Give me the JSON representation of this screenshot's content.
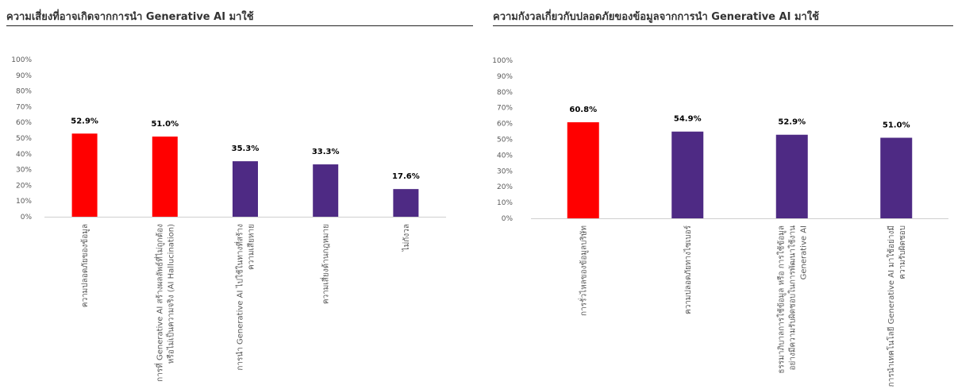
{
  "colors": {
    "highlight": "#ff0000",
    "bar": "#4e2a84",
    "axis": "#d0d0d0",
    "tick": "#595959",
    "title": "#333333"
  },
  "charts": [
    {
      "title": "ความเสี่ยงที่อาจเกิดจากการนำ  Generative AI มาใช้",
      "y_ticks": [
        "0%",
        "10%",
        "20%",
        "30%",
        "40%",
        "50%",
        "60%",
        "70%",
        "80%",
        "90%",
        "100%"
      ],
      "categories": [
        [
          "ความปลอดภัยของข้อมูล"
        ],
        [
          "การที่ Generative AI สร้างผลลัพธ์ที่ไม่ถูกต้อง",
          "หรือไม่เป็นความจริง (AI Hallucination)"
        ],
        [
          "การนำ Generative AI ไปใช้ในทางที่สร้าง",
          "ความเสียหาย"
        ],
        [
          "ความเสี่ยงด้านกฎหมาย"
        ],
        [
          "ไม่กังวล"
        ]
      ],
      "value_labels": [
        "52.9%",
        "51.0%",
        "35.3%",
        "33.3%",
        "17.6%"
      ]
    },
    {
      "title": "ความกังวลเกี่ยวกับปลอดภัยของข้อมูลจากการนำ  Generative AI มาใช้",
      "y_ticks": [
        "0%",
        "10%",
        "20%",
        "30%",
        "40%",
        "50%",
        "60%",
        "70%",
        "80%",
        "90%",
        "100%"
      ],
      "categories": [
        [
          "การรั่วไหลของข้อมูลบริษัท"
        ],
        [
          "ความปลอดภัยทางไซเบอร์"
        ],
        [
          "ธรรมาภิบาลการใช้ข้อมูล หรือ การใช้ข้อมูล",
          "อย่างมีความรับผิดชอบในการพัฒนาใช้งาน",
          "Generative AI"
        ],
        [
          "การนำเทคโนโลยี Generative AI มาใช้อย่างมี",
          "ความรับผิดชอบ"
        ]
      ],
      "value_labels": [
        "60.8%",
        "54.9%",
        "52.9%",
        "51.0%"
      ]
    }
  ],
  "chart_data": [
    {
      "type": "bar",
      "title": "ความเสี่ยงที่อาจเกิดจากการนำ  Generative AI มาใช้",
      "categories": [
        "ความปลอดภัยของข้อมูล",
        "การที่ Generative AI สร้างผลลัพธ์ที่ไม่ถูกต้อง หรือไม่เป็นความจริง (AI Hallucination)",
        "การนำ Generative AI ไปใช้ในทางที่สร้างความเสียหาย",
        "ความเสี่ยงด้านกฎหมาย",
        "ไม่กังวล"
      ],
      "values": [
        52.9,
        51.0,
        35.3,
        33.3,
        17.6
      ],
      "highlighted": [
        true,
        true,
        false,
        false,
        false
      ],
      "ylim": [
        0,
        100
      ],
      "y_unit": "%",
      "grid": false,
      "legend": "none"
    },
    {
      "type": "bar",
      "title": "ความกังวลเกี่ยวกับปลอดภัยของข้อมูลจากการนำ  Generative AI มาใช้",
      "categories": [
        "การรั่วไหลของข้อมูลบริษัท",
        "ความปลอดภัยทางไซเบอร์",
        "ธรรมาภิบาลการใช้ข้อมูล หรือ การใช้ข้อมูลอย่างมีความรับผิดชอบในการพัฒนาใช้งาน Generative AI",
        "การนำเทคโนโลยี Generative AI มาใช้อย่างมีความรับผิดชอบ"
      ],
      "values": [
        60.8,
        54.9,
        52.9,
        51.0
      ],
      "highlighted": [
        true,
        false,
        false,
        false
      ],
      "ylim": [
        0,
        100
      ],
      "y_unit": "%",
      "grid": false,
      "legend": "none"
    }
  ]
}
